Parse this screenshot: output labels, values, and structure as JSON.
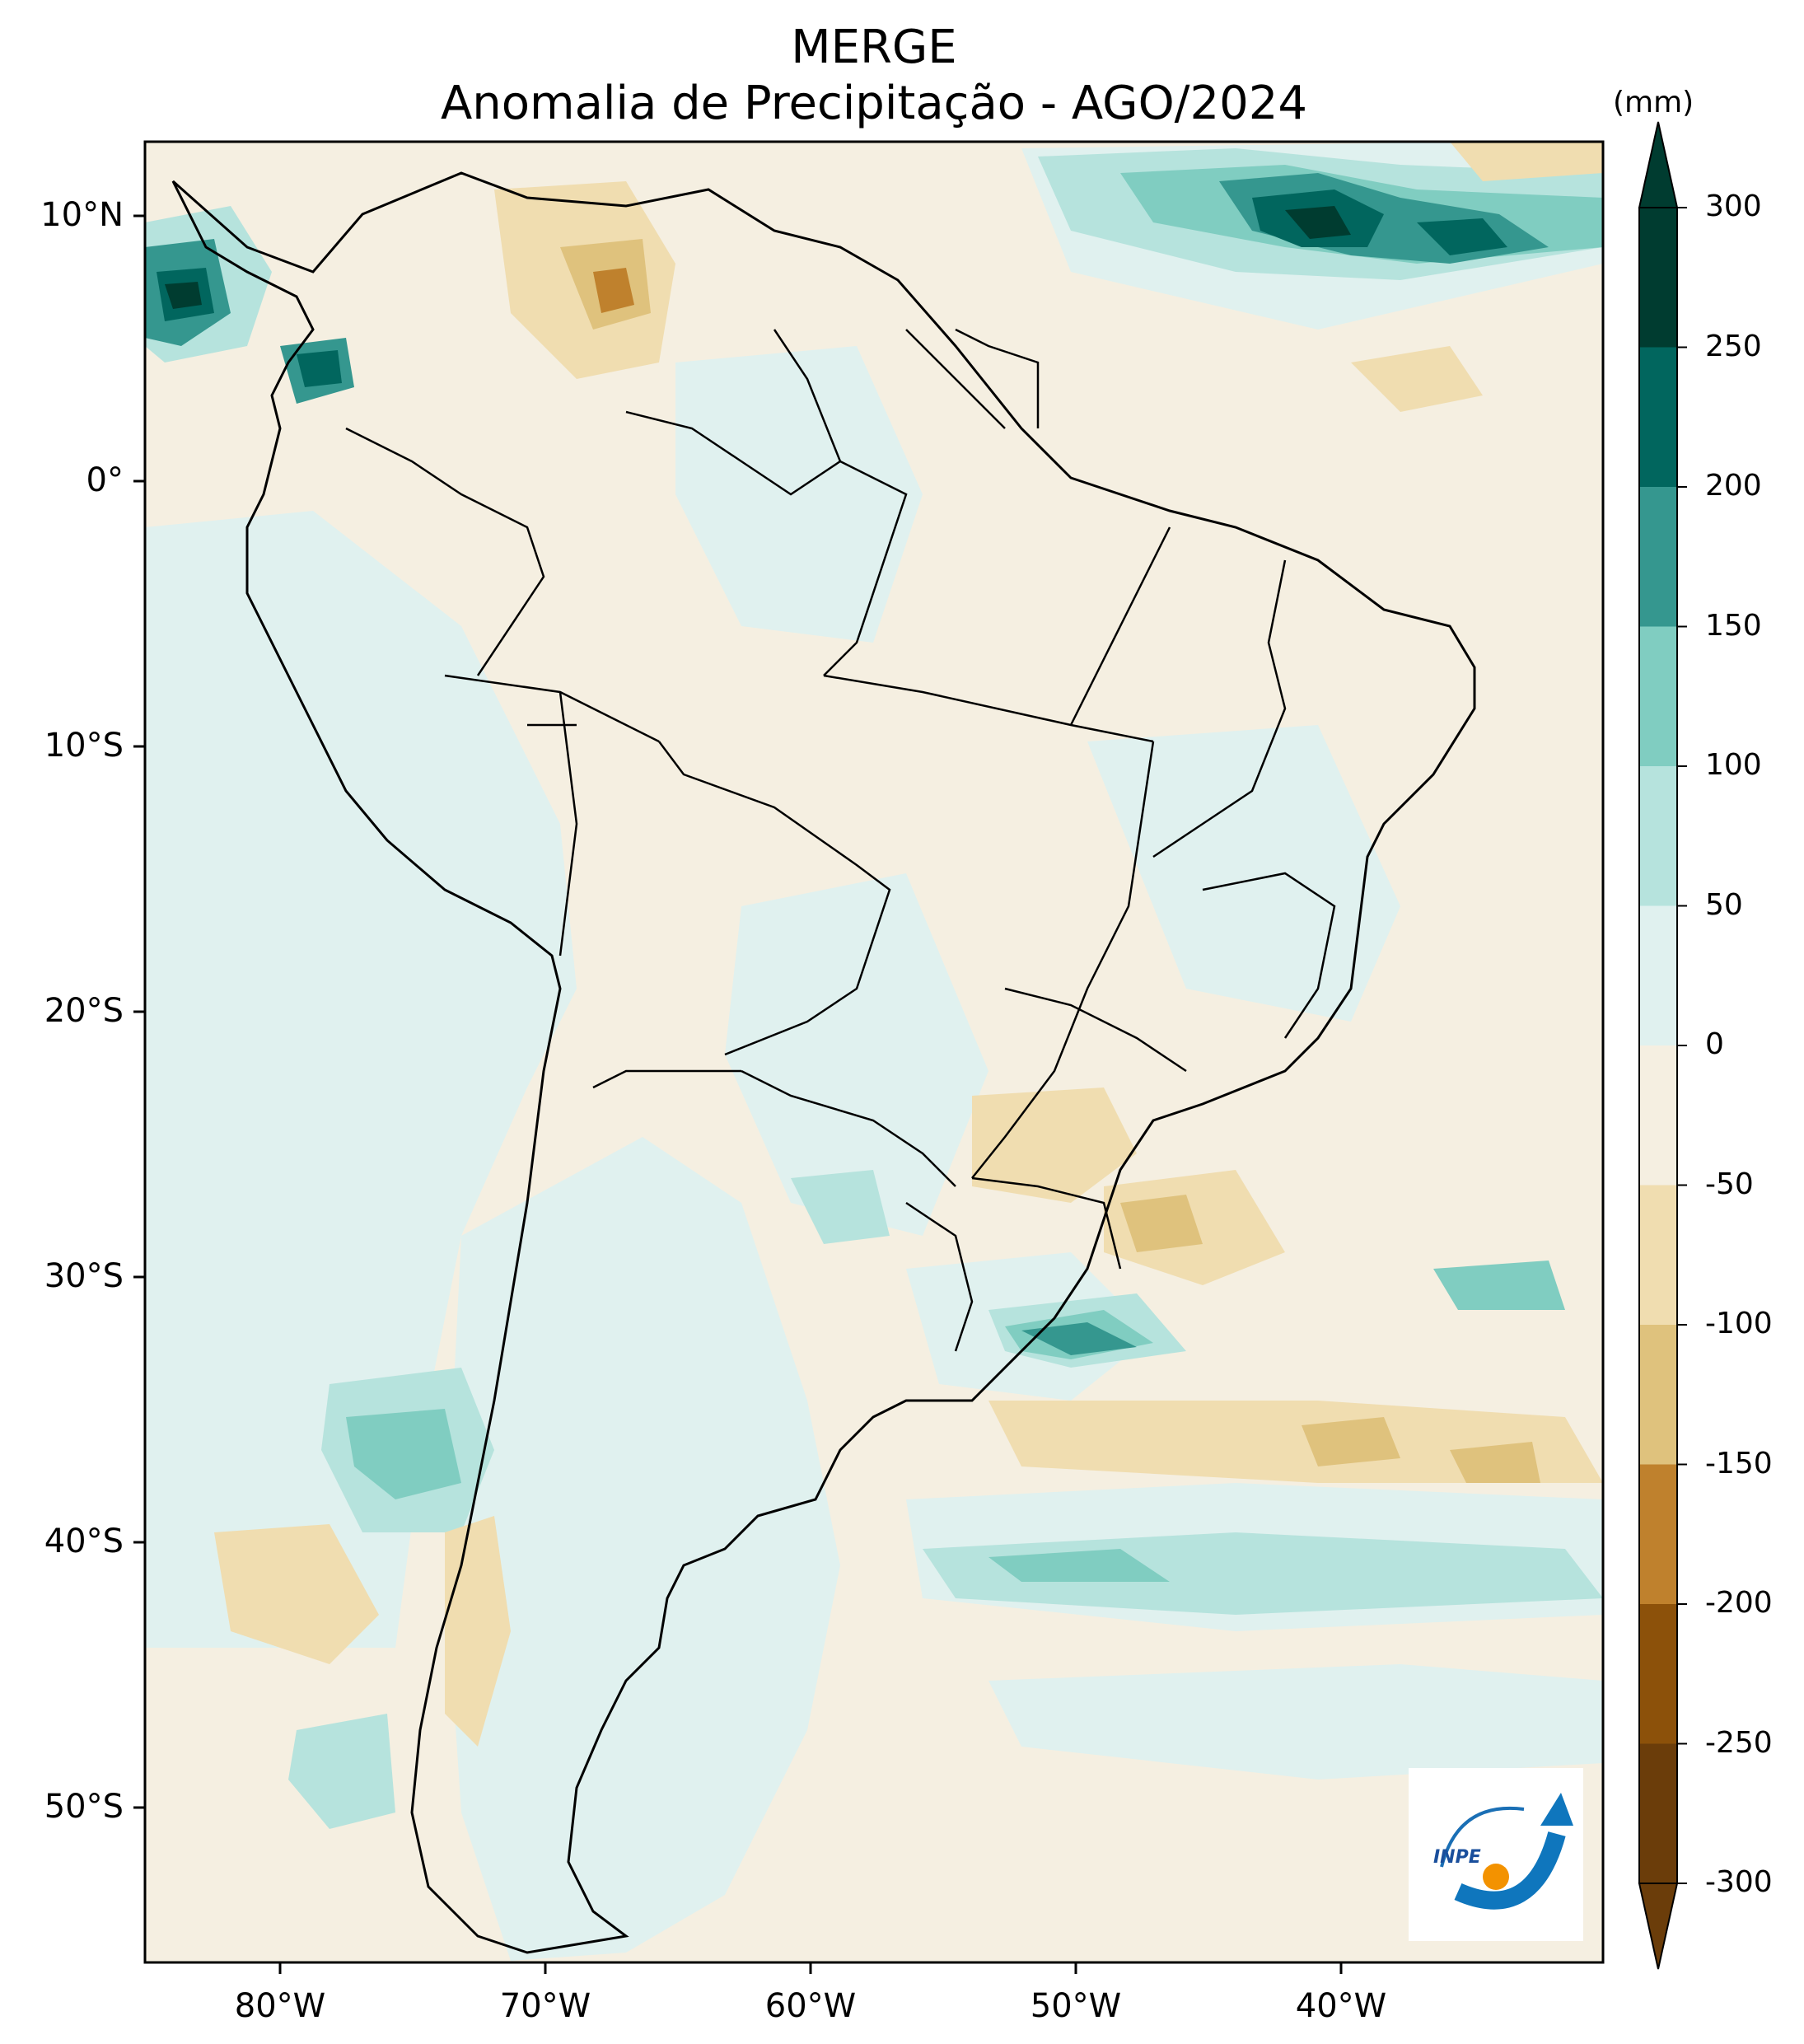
{
  "title": {
    "line1": "MERGE",
    "line2": "Anomalia de Precipitação - AGO/2024"
  },
  "axes": {
    "lat_labels": [
      "10°N",
      "0°",
      "10°S",
      "20°S",
      "30°S",
      "40°S",
      "50°S"
    ],
    "lon_labels": [
      "80°W",
      "70°W",
      "60°W",
      "50°W",
      "40°W"
    ]
  },
  "colorbar": {
    "unit": "(mm)",
    "ticks": [
      "300",
      "250",
      "200",
      "150",
      "100",
      "50",
      "0",
      "-50",
      "-100",
      "-150",
      "-200",
      "-250",
      "-300"
    ],
    "colors": [
      "#003c30",
      "#01665e",
      "#35978f",
      "#80cdc1",
      "#b6e3dd",
      "#e0f1ef",
      "#f5efe1",
      "#f0ddb0",
      "#dfc27d",
      "#bf812d",
      "#8c510a",
      "#6b3d0a"
    ]
  },
  "logo": {
    "text": "INPE"
  },
  "map_colors": {
    "neutral": "#f5efe1",
    "light_wet": "#e0f1ef",
    "mid_wet": "#b6e3dd",
    "wet": "#80cdc1",
    "strong_wet": "#35978f",
    "very_wet": "#01665e",
    "extreme_wet": "#003c30",
    "light_dry": "#f0ddb0",
    "dry": "#dfc27d",
    "strong_dry": "#bf812d"
  }
}
